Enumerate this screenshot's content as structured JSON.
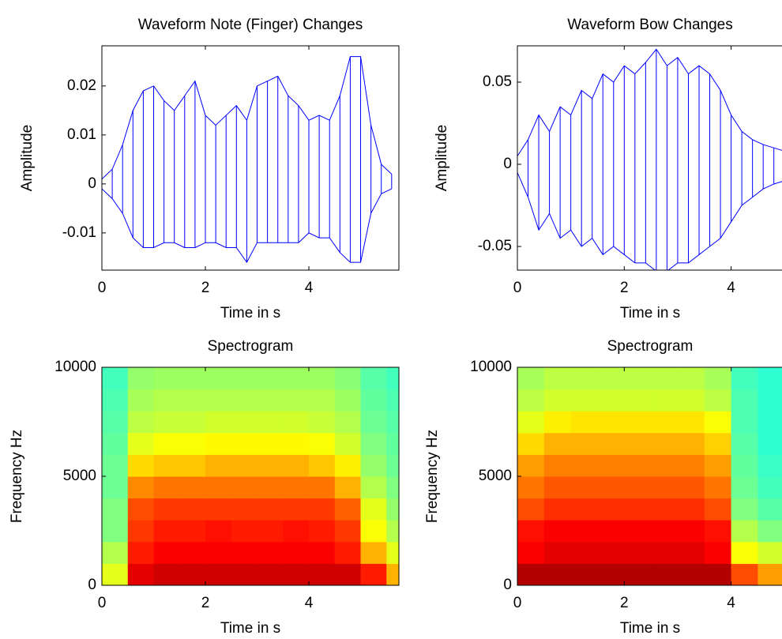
{
  "chart_data": [
    {
      "type": "waveform",
      "title": "Waveform Note (Finger) Changes",
      "xlabel": "Time in s",
      "ylabel": "Amplitude",
      "x": [
        0,
        0.2,
        0.4,
        0.6,
        0.8,
        1.0,
        1.2,
        1.4,
        1.6,
        1.8,
        2.0,
        2.2,
        2.4,
        2.6,
        2.8,
        3.0,
        3.2,
        3.4,
        3.6,
        3.8,
        4.0,
        4.2,
        4.4,
        4.6,
        4.8,
        5.0,
        5.2,
        5.4,
        5.6
      ],
      "series": [
        {
          "color": "#0000ff",
          "values": [
            0.001,
            0.003,
            0.008,
            0.015,
            0.019,
            0.02,
            0.017,
            0.015,
            0.018,
            0.021,
            0.014,
            0.012,
            0.014,
            0.016,
            0.013,
            0.02,
            0.021,
            0.022,
            0.018,
            0.016,
            0.013,
            0.014,
            0.013,
            0.018,
            0.026,
            0.026,
            0.012,
            0.004,
            0.002
          ]
        },
        {
          "color": "#0000ff",
          "values": [
            -0.001,
            -0.003,
            -0.006,
            -0.011,
            -0.013,
            -0.013,
            -0.012,
            -0.012,
            -0.013,
            -0.013,
            -0.012,
            -0.012,
            -0.013,
            -0.013,
            -0.016,
            -0.012,
            -0.012,
            -0.012,
            -0.012,
            -0.012,
            -0.01,
            -0.011,
            -0.011,
            -0.014,
            -0.016,
            -0.016,
            -0.006,
            -0.002,
            -0.001
          ]
        }
      ],
      "xlim": [
        0,
        5.74
      ],
      "xticks": [
        0,
        2,
        4
      ],
      "ylim": [
        -0.0176,
        0.0282
      ],
      "yticks": [
        -0.01,
        0,
        0.01,
        0.02
      ]
    },
    {
      "type": "waveform",
      "title": "Waveform Bow Changes",
      "xlabel": "Time in s",
      "ylabel": "Amplitude",
      "x": [
        0,
        0.2,
        0.4,
        0.6,
        0.8,
        1.0,
        1.2,
        1.4,
        1.6,
        1.8,
        2.0,
        2.2,
        2.4,
        2.6,
        2.8,
        3.0,
        3.2,
        3.4,
        3.6,
        3.8,
        4.0,
        4.2,
        4.4,
        4.6,
        4.8,
        5.0
      ],
      "series": [
        {
          "color": "#0000ff",
          "values": [
            0.005,
            0.015,
            0.03,
            0.02,
            0.035,
            0.03,
            0.045,
            0.04,
            0.055,
            0.05,
            0.06,
            0.055,
            0.062,
            0.07,
            0.06,
            0.065,
            0.055,
            0.06,
            0.055,
            0.045,
            0.03,
            0.02,
            0.015,
            0.012,
            0.01,
            0.008
          ]
        },
        {
          "color": "#0000ff",
          "values": [
            -0.005,
            -0.02,
            -0.04,
            -0.03,
            -0.045,
            -0.04,
            -0.05,
            -0.045,
            -0.055,
            -0.05,
            -0.055,
            -0.06,
            -0.06,
            -0.065,
            -0.065,
            -0.06,
            -0.06,
            -0.055,
            -0.05,
            -0.045,
            -0.035,
            -0.025,
            -0.02,
            -0.015,
            -0.012,
            -0.01
          ]
        }
      ],
      "xlim": [
        0,
        5.1
      ],
      "xticks": [
        0,
        2,
        4
      ],
      "ylim": [
        -0.0644,
        0.0721
      ],
      "yticks": [
        -0.05,
        0,
        0.05
      ]
    },
    {
      "type": "spectrogram",
      "title": "Spectrogram",
      "xlabel": "Time in s",
      "ylabel": "Frequency Hz",
      "colormap": "jet",
      "clim": [
        0,
        1
      ],
      "xbins": [
        0,
        0.5,
        1.0,
        1.5,
        2.0,
        2.5,
        3.0,
        3.5,
        4.0,
        4.5,
        5.0,
        5.5,
        5.74
      ],
      "ybins": [
        0,
        1000,
        2000,
        3000,
        4000,
        5000,
        6000,
        7000,
        8000,
        9000,
        10000
      ],
      "z": [
        [
          0.6,
          0.9,
          0.92,
          0.92,
          0.92,
          0.92,
          0.92,
          0.92,
          0.92,
          0.92,
          0.85,
          0.7
        ],
        [
          0.55,
          0.85,
          0.88,
          0.88,
          0.88,
          0.88,
          0.88,
          0.88,
          0.88,
          0.85,
          0.7,
          0.6
        ],
        [
          0.5,
          0.82,
          0.85,
          0.85,
          0.86,
          0.85,
          0.85,
          0.86,
          0.85,
          0.82,
          0.62,
          0.55
        ],
        [
          0.5,
          0.8,
          0.82,
          0.82,
          0.82,
          0.82,
          0.82,
          0.82,
          0.82,
          0.78,
          0.6,
          0.52
        ],
        [
          0.48,
          0.74,
          0.76,
          0.76,
          0.76,
          0.76,
          0.76,
          0.76,
          0.76,
          0.7,
          0.55,
          0.5
        ],
        [
          0.48,
          0.66,
          0.68,
          0.68,
          0.7,
          0.7,
          0.7,
          0.7,
          0.68,
          0.64,
          0.52,
          0.48
        ],
        [
          0.47,
          0.6,
          0.62,
          0.62,
          0.63,
          0.63,
          0.63,
          0.63,
          0.62,
          0.58,
          0.5,
          0.47
        ],
        [
          0.46,
          0.56,
          0.57,
          0.57,
          0.58,
          0.58,
          0.58,
          0.58,
          0.57,
          0.55,
          0.48,
          0.46
        ],
        [
          0.45,
          0.54,
          0.55,
          0.55,
          0.55,
          0.55,
          0.55,
          0.55,
          0.55,
          0.53,
          0.47,
          0.45
        ],
        [
          0.44,
          0.52,
          0.53,
          0.53,
          0.53,
          0.53,
          0.53,
          0.53,
          0.53,
          0.51,
          0.46,
          0.44
        ]
      ],
      "xlim": [
        0,
        5.74
      ],
      "xticks": [
        0,
        2,
        4
      ],
      "ylim": [
        0,
        10000
      ],
      "yticks": [
        0,
        5000,
        10000
      ]
    },
    {
      "type": "spectrogram",
      "title": "Spectrogram",
      "xlabel": "Time in s",
      "ylabel": "Frequency Hz",
      "colormap": "jet",
      "clim": [
        0,
        1
      ],
      "xbins": [
        0,
        0.5,
        1.0,
        1.5,
        2.0,
        2.5,
        3.0,
        3.5,
        4.0,
        4.5,
        5.0,
        5.1
      ],
      "ybins": [
        0,
        1000,
        2000,
        3000,
        4000,
        5000,
        6000,
        7000,
        8000,
        9000,
        10000
      ],
      "z": [
        [
          0.95,
          0.95,
          0.95,
          0.95,
          0.95,
          0.95,
          0.95,
          0.95,
          0.8,
          0.72,
          0.7
        ],
        [
          0.88,
          0.9,
          0.9,
          0.9,
          0.9,
          0.9,
          0.9,
          0.88,
          0.62,
          0.58,
          0.56
        ],
        [
          0.86,
          0.88,
          0.88,
          0.88,
          0.88,
          0.88,
          0.88,
          0.86,
          0.55,
          0.5,
          0.48
        ],
        [
          0.8,
          0.83,
          0.83,
          0.83,
          0.83,
          0.83,
          0.83,
          0.8,
          0.5,
          0.46,
          0.44
        ],
        [
          0.76,
          0.79,
          0.79,
          0.79,
          0.79,
          0.79,
          0.79,
          0.76,
          0.48,
          0.44,
          0.42
        ],
        [
          0.72,
          0.75,
          0.75,
          0.75,
          0.75,
          0.75,
          0.75,
          0.72,
          0.47,
          0.43,
          0.41
        ],
        [
          0.66,
          0.7,
          0.7,
          0.7,
          0.7,
          0.7,
          0.7,
          0.67,
          0.46,
          0.42,
          0.4
        ],
        [
          0.6,
          0.64,
          0.65,
          0.65,
          0.65,
          0.65,
          0.65,
          0.62,
          0.45,
          0.42,
          0.4
        ],
        [
          0.56,
          0.58,
          0.58,
          0.58,
          0.58,
          0.58,
          0.58,
          0.56,
          0.45,
          0.42,
          0.4
        ],
        [
          0.54,
          0.56,
          0.56,
          0.56,
          0.56,
          0.56,
          0.56,
          0.54,
          0.44,
          0.42,
          0.4
        ]
      ],
      "xlim": [
        0,
        5.1
      ],
      "xticks": [
        0,
        2,
        4
      ],
      "ylim": [
        0,
        10000
      ],
      "yticks": [
        0,
        5000,
        10000
      ]
    }
  ]
}
